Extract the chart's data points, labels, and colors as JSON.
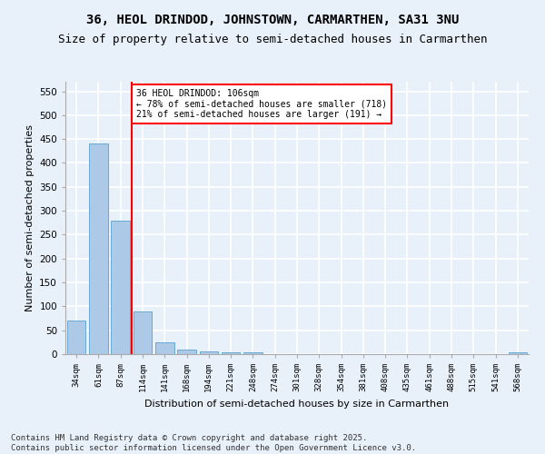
{
  "title1": "36, HEOL DRINDOD, JOHNSTOWN, CARMARTHEN, SA31 3NU",
  "title2": "Size of property relative to semi-detached houses in Carmarthen",
  "xlabel": "Distribution of semi-detached houses by size in Carmarthen",
  "ylabel": "Number of semi-detached properties",
  "categories": [
    "34sqm",
    "61sqm",
    "87sqm",
    "114sqm",
    "141sqm",
    "168sqm",
    "194sqm",
    "221sqm",
    "248sqm",
    "274sqm",
    "301sqm",
    "328sqm",
    "354sqm",
    "381sqm",
    "408sqm",
    "435sqm",
    "461sqm",
    "488sqm",
    "515sqm",
    "541sqm",
    "568sqm"
  ],
  "values": [
    70,
    440,
    280,
    90,
    25,
    10,
    5,
    4,
    4,
    0,
    0,
    0,
    0,
    0,
    0,
    0,
    0,
    0,
    0,
    0,
    4
  ],
  "bar_color": "#adc9e8",
  "bar_edge_color": "#6aaad4",
  "vline_x_index": 2,
  "vline_color": "red",
  "annotation_title": "36 HEOL DRINDOD: 106sqm",
  "annotation_line1": "← 78% of semi-detached houses are smaller (718)",
  "annotation_line2": "21% of semi-detached houses are larger (191) →",
  "annotation_box_color": "white",
  "annotation_box_edge": "red",
  "ylim": [
    0,
    570
  ],
  "yticks": [
    0,
    50,
    100,
    150,
    200,
    250,
    300,
    350,
    400,
    450,
    500,
    550
  ],
  "background_color": "#e8f0fa",
  "grid_color": "white",
  "title_fontsize": 10,
  "subtitle_fontsize": 9,
  "footer_fontsize": 6.5,
  "footer": "Contains HM Land Registry data © Crown copyright and database right 2025.\nContains public sector information licensed under the Open Government Licence v3.0."
}
